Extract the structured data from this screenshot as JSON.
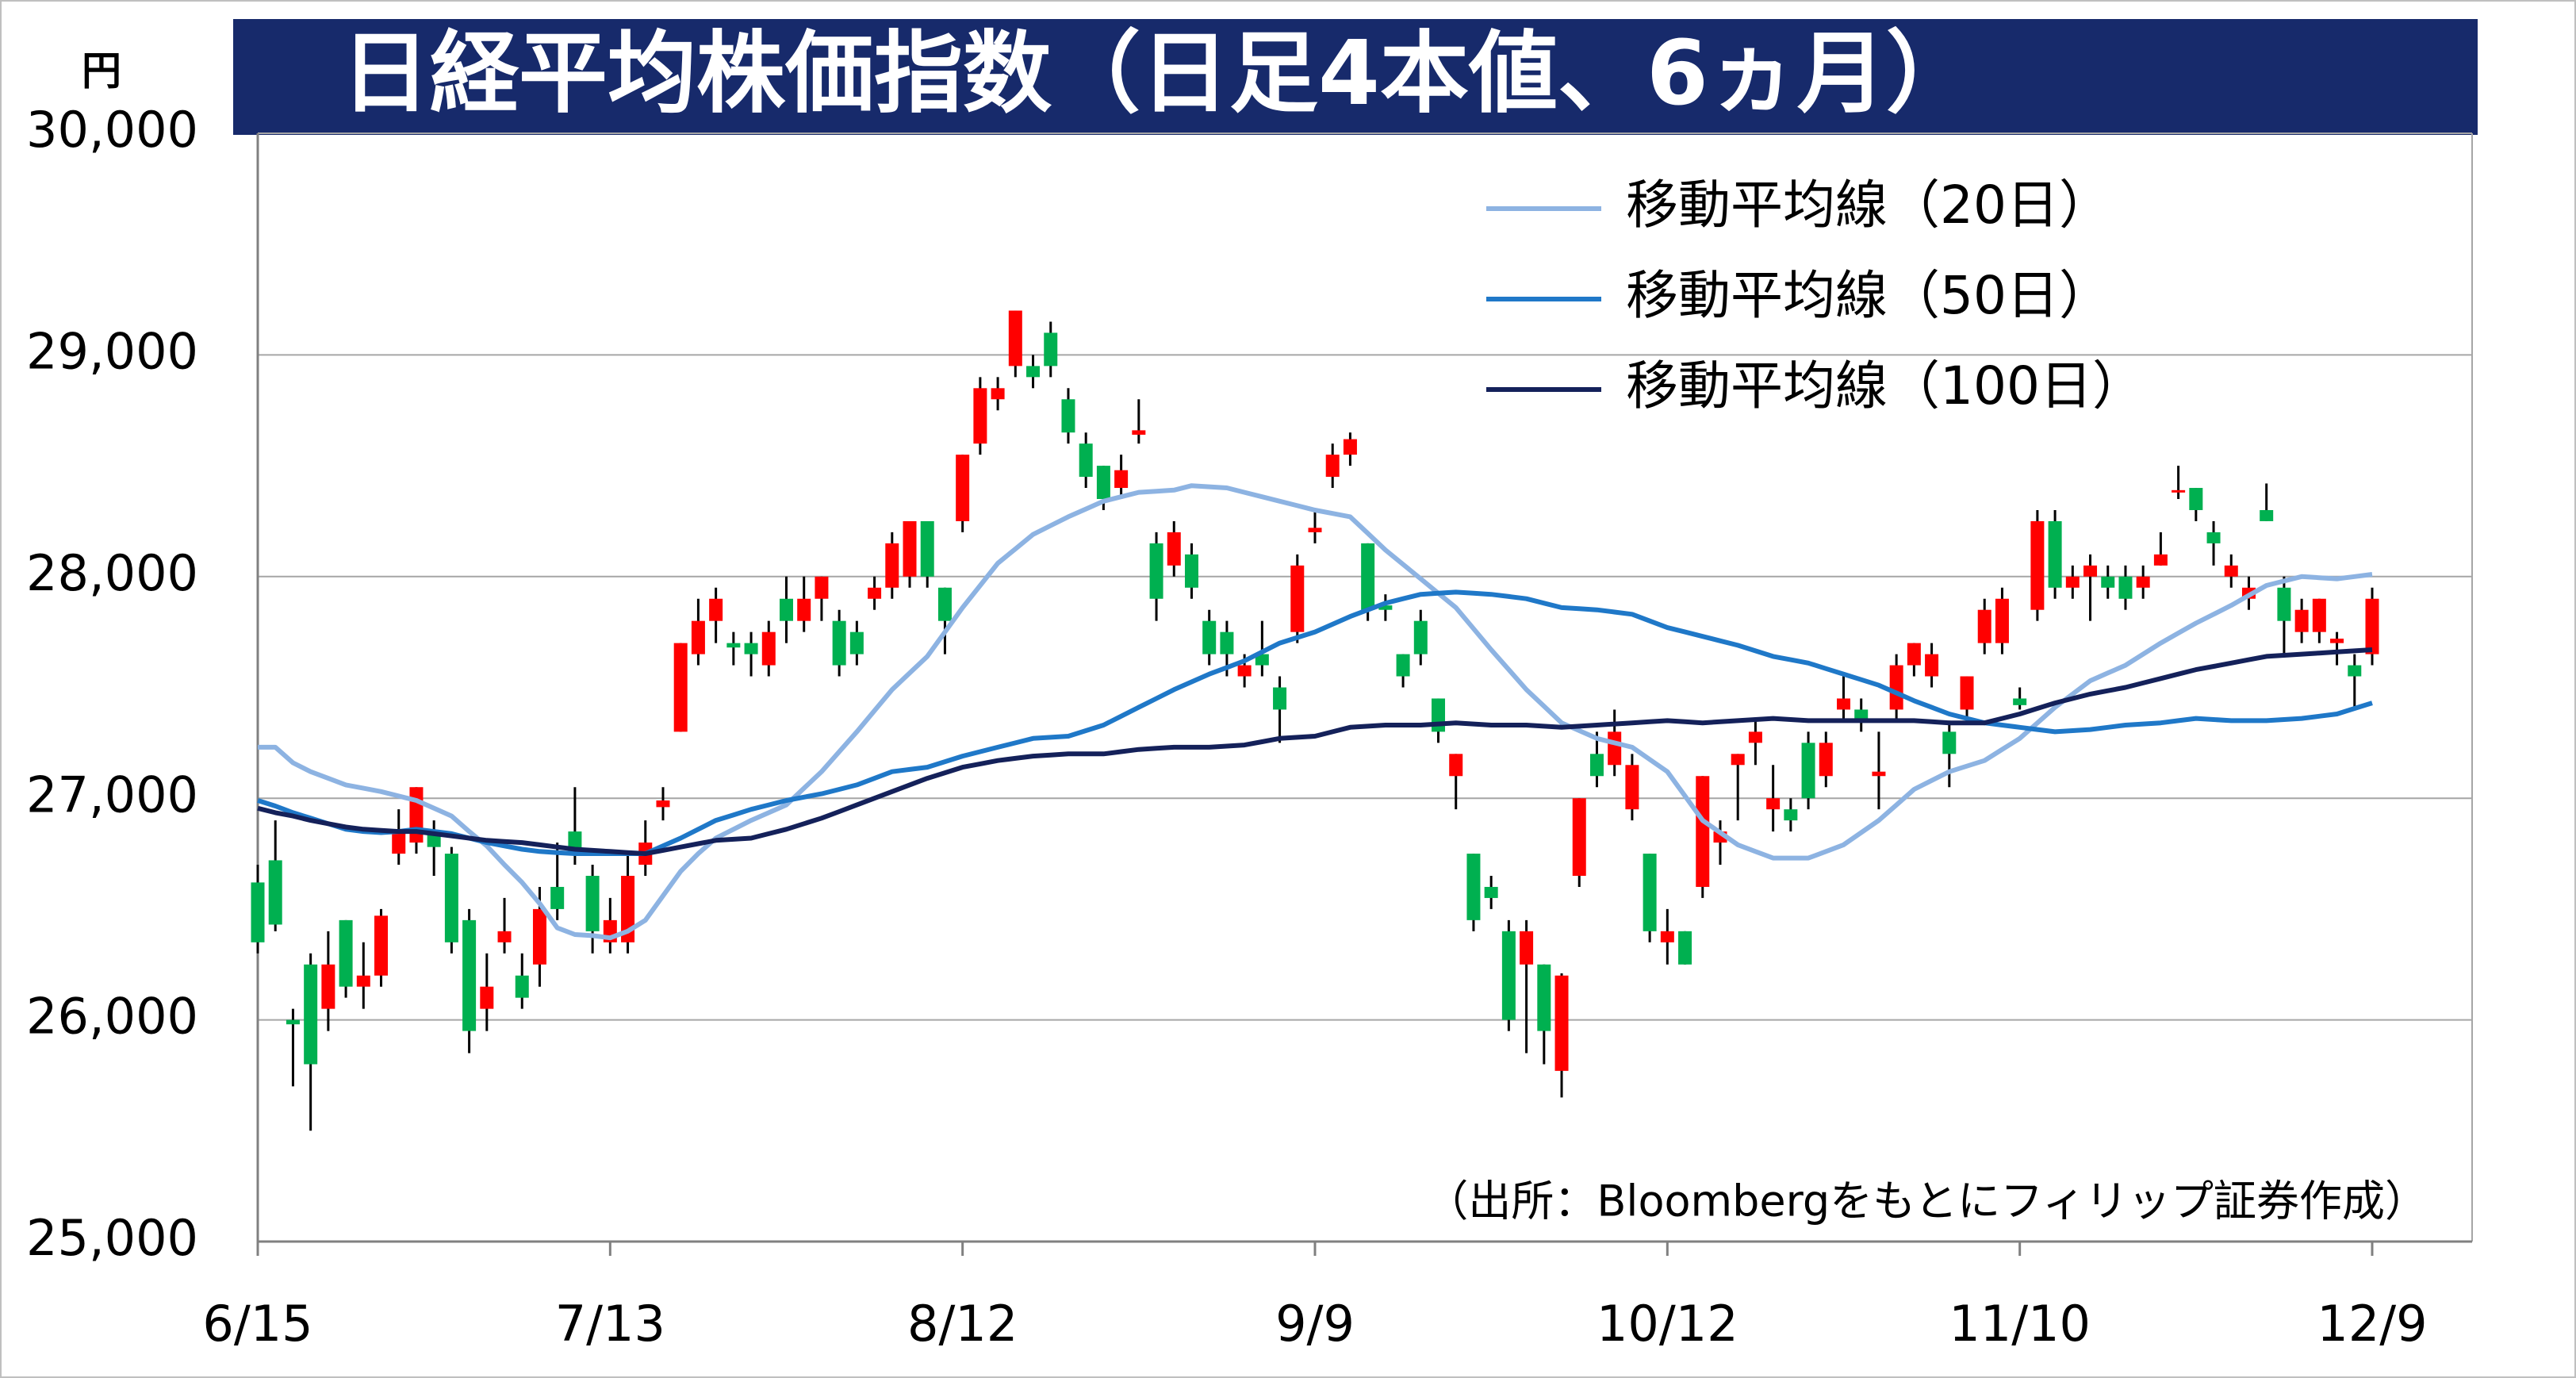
{
  "chart_data": {
    "type": "candlestick",
    "title": "日経平均株価指数（日足4本値、6ヵ月）",
    "y_unit": "円",
    "source": "（出所：Bloombergをもとにフィリップ証券作成）",
    "up_color": "#ff0000",
    "down_color": "#00b050",
    "grid": true,
    "ylim": [
      25000,
      30000
    ],
    "yticks": [
      {
        "value": 25000,
        "label": "25,000"
      },
      {
        "value": 26000,
        "label": "26,000"
      },
      {
        "value": 27000,
        "label": "27,000"
      },
      {
        "value": 28000,
        "label": "28,000"
      },
      {
        "value": 29000,
        "label": "29,000"
      },
      {
        "value": 30000,
        "label": "30,000"
      }
    ],
    "categories": [
      "6/15",
      null,
      null,
      null,
      null,
      null,
      null,
      null,
      null,
      null,
      null,
      null,
      null,
      null,
      null,
      null,
      null,
      null,
      null,
      null,
      "7/13",
      null,
      null,
      null,
      null,
      null,
      null,
      null,
      null,
      null,
      null,
      null,
      null,
      null,
      null,
      null,
      null,
      null,
      null,
      null,
      "8/12",
      null,
      null,
      null,
      null,
      null,
      null,
      null,
      null,
      null,
      null,
      null,
      null,
      null,
      null,
      null,
      null,
      null,
      null,
      null,
      "9/9",
      null,
      null,
      null,
      null,
      null,
      null,
      null,
      null,
      null,
      null,
      null,
      null,
      null,
      null,
      null,
      null,
      null,
      null,
      null,
      "10/12",
      null,
      null,
      null,
      null,
      null,
      null,
      null,
      null,
      null,
      null,
      null,
      null,
      null,
      null,
      null,
      null,
      null,
      null,
      null,
      "11/10",
      null,
      null,
      null,
      null,
      null,
      null,
      null,
      null,
      null,
      null,
      null,
      null,
      null,
      null,
      null,
      null,
      null,
      null,
      null,
      "12/9"
    ],
    "open": [
      26620,
      26720,
      26000,
      26250,
      26050,
      26450,
      26150,
      26200,
      26750,
      26800,
      26850,
      26750,
      26450,
      26050,
      26350,
      26200,
      26250,
      26600,
      26850,
      26650,
      26350,
      26350,
      26700,
      26960,
      27300,
      27650,
      27800,
      27700,
      27700,
      27600,
      27900,
      27800,
      27900,
      27800,
      27750,
      27900,
      27950,
      28000,
      28250,
      27950,
      28250,
      28600,
      28800,
      28950,
      28950,
      29100,
      28800,
      28600,
      28500,
      28400,
      28640,
      28150,
      28050,
      28100,
      27800,
      27750,
      27550,
      27650,
      27500,
      27750,
      28200,
      28450,
      28550,
      28150,
      27870,
      27650,
      27800,
      27450,
      27100,
      26750,
      26600,
      26400,
      26250,
      26250,
      25770,
      26650,
      27200,
      27150,
      26950,
      26750,
      26350,
      26400,
      26600,
      26800,
      27150,
      27250,
      26950,
      26950,
      27250,
      27100,
      27400,
      27400,
      27100,
      27400,
      27600,
      27550,
      27300,
      27400,
      27700,
      27700,
      27450,
      27850,
      28250,
      27950,
      28000,
      28000,
      28000,
      27950,
      28050,
      28380,
      28400,
      28200,
      28000,
      27900,
      28300,
      27950,
      27750,
      27750,
      27700,
      27600,
      27650
    ],
    "high": [
      26700,
      26900,
      26050,
      26300,
      26400,
      26450,
      26350,
      26500,
      26950,
      27050,
      26900,
      26780,
      26500,
      26300,
      26550,
      26300,
      26600,
      26800,
      27050,
      26700,
      26550,
      26750,
      26900,
      27050,
      27700,
      27900,
      27950,
      27750,
      27750,
      27800,
      28000,
      28000,
      28000,
      27850,
      27800,
      28000,
      28200,
      28250,
      28250,
      27950,
      28550,
      28900,
      28900,
      29200,
      29000,
      29150,
      28850,
      28650,
      28500,
      28550,
      28800,
      28200,
      28250,
      28150,
      27850,
      27800,
      27650,
      27800,
      27550,
      28100,
      28300,
      28600,
      28650,
      28150,
      27920,
      27650,
      27850,
      27450,
      27200,
      26750,
      26650,
      26450,
      26450,
      26250,
      26210,
      27000,
      27300,
      27400,
      27200,
      26750,
      26500,
      26400,
      27100,
      26900,
      27200,
      27350,
      27150,
      27000,
      27300,
      27300,
      27550,
      27450,
      27300,
      27650,
      27700,
      27700,
      27350,
      27550,
      27900,
      27950,
      27500,
      28300,
      28300,
      28050,
      28100,
      28050,
      28050,
      28050,
      28200,
      28500,
      28400,
      28250,
      28100,
      28000,
      28420,
      28000,
      27900,
      27900,
      27750,
      27650,
      27950
    ],
    "low": [
      26300,
      26400,
      25700,
      25500,
      25950,
      26100,
      26050,
      26150,
      26700,
      26750,
      26650,
      26300,
      25850,
      25950,
      26300,
      26050,
      26150,
      26450,
      26700,
      26300,
      26300,
      26300,
      26650,
      26900,
      27300,
      27600,
      27700,
      27600,
      27550,
      27550,
      27700,
      27750,
      27800,
      27550,
      27600,
      27850,
      27900,
      27950,
      27950,
      27650,
      28200,
      28550,
      28750,
      28900,
      28850,
      28900,
      28600,
      28400,
      28300,
      28350,
      28600,
      27800,
      28000,
      27900,
      27600,
      27550,
      27500,
      27550,
      27250,
      27700,
      28150,
      28400,
      28500,
      27800,
      27800,
      27500,
      27600,
      27250,
      26950,
      26400,
      26500,
      25950,
      25850,
      25800,
      25650,
      26600,
      27050,
      27100,
      26900,
      26350,
      26250,
      26250,
      26550,
      26700,
      26900,
      27150,
      26850,
      26850,
      26950,
      27050,
      27350,
      27300,
      26950,
      27350,
      27550,
      27500,
      27050,
      27350,
      27650,
      27650,
      27400,
      27800,
      27900,
      27900,
      27800,
      27900,
      27850,
      27900,
      28050,
      28350,
      28250,
      28050,
      27950,
      27850,
      28250,
      27650,
      27700,
      27700,
      27600,
      27400,
      27600
    ],
    "close": [
      26350,
      26430,
      25980,
      25800,
      26250,
      26150,
      26200,
      26470,
      26850,
      27050,
      26780,
      26350,
      25950,
      26150,
      26400,
      26100,
      26500,
      26500,
      26750,
      26400,
      26450,
      26650,
      26800,
      26990,
      27700,
      27800,
      27900,
      27680,
      27650,
      27750,
      27800,
      27900,
      28000,
      27600,
      27650,
      27950,
      28150,
      28250,
      28000,
      27800,
      28550,
      28850,
      28850,
      29200,
      28900,
      28950,
      28650,
      28450,
      28350,
      28480,
      28660,
      27900,
      28200,
      27950,
      27650,
      27650,
      27600,
      27600,
      27400,
      28050,
      28220,
      28550,
      28620,
      27850,
      27850,
      27550,
      27650,
      27300,
      27200,
      26450,
      26550,
      26000,
      26400,
      25950,
      26200,
      27000,
      27100,
      27300,
      27150,
      26400,
      26400,
      26250,
      27100,
      26850,
      27200,
      27300,
      27000,
      26900,
      27000,
      27250,
      27450,
      27350,
      27120,
      27600,
      27700,
      27650,
      27200,
      27550,
      27850,
      27900,
      27420,
      28250,
      27950,
      28000,
      28050,
      27950,
      27900,
      28000,
      28100,
      28390,
      28300,
      28150,
      28050,
      27950,
      28250,
      27800,
      27850,
      27900,
      27720,
      27550,
      27900
    ],
    "series": [
      {
        "name": "移動平均線（20日）",
        "color": "#8db3e2",
        "values": [
          27230,
          27230,
          27160,
          27120,
          27090,
          27060,
          27045,
          27030,
          27010,
          26990,
          26955,
          26920,
          26850,
          26785,
          26700,
          26620,
          26525,
          26415,
          26385,
          26380,
          26370,
          26400,
          26450,
          26560,
          26670,
          26750,
          26820,
          26860,
          26900,
          26935,
          26970,
          27045,
          27120,
          27210,
          27300,
          27395,
          27490,
          27565,
          27640,
          27750,
          27860,
          27960,
          28060,
          28125,
          28190,
          28230,
          28270,
          28305,
          28340,
          28360,
          28380,
          28385,
          28390,
          28410,
          28405,
          28400,
          28380,
          28360,
          28340,
          28320,
          28300,
          28285,
          28270,
          28195,
          28120,
          28055,
          27990,
          27925,
          27860,
          27765,
          27670,
          27580,
          27490,
          27415,
          27340,
          27305,
          27270,
          27250,
          27230,
          27175,
          27120,
          27010,
          26900,
          26845,
          26790,
          26760,
          26730,
          26730,
          26730,
          26760,
          26790,
          26845,
          26900,
          26970,
          27040,
          27080,
          27120,
          27145,
          27170,
          27220,
          27270,
          27340,
          27410,
          27470,
          27530,
          27565,
          27600,
          27650,
          27700,
          27745,
          27790,
          27830,
          27870,
          27915,
          27960,
          27980,
          28000,
          27995,
          27990,
          28000,
          28010
        ]
      },
      {
        "name": "移動平均線（50日）",
        "color": "#1f78c8",
        "values": [
          26990,
          26965,
          26935,
          26910,
          26885,
          26860,
          26850,
          26845,
          26850,
          26860,
          26850,
          26840,
          26820,
          26800,
          26785,
          26770,
          26760,
          26755,
          26750,
          26750,
          26750,
          26750,
          26750,
          26785,
          26820,
          26860,
          26900,
          26925,
          26950,
          26970,
          26990,
          27005,
          27020,
          27040,
          27060,
          27090,
          27120,
          27130,
          27140,
          27165,
          27190,
          27210,
          27230,
          27250,
          27270,
          27275,
          27280,
          27305,
          27330,
          27370,
          27410,
          27450,
          27490,
          27525,
          27560,
          27590,
          27620,
          27660,
          27700,
          27725,
          27750,
          27785,
          27820,
          27850,
          27880,
          27900,
          27920,
          27925,
          27930,
          27925,
          27920,
          27910,
          27900,
          27880,
          27860,
          27855,
          27850,
          27840,
          27830,
          27800,
          27770,
          27750,
          27730,
          27710,
          27690,
          27665,
          27640,
          27625,
          27610,
          27585,
          27560,
          27535,
          27510,
          27475,
          27440,
          27410,
          27380,
          27360,
          27340,
          27330,
          27320,
          27310,
          27300,
          27305,
          27310,
          27320,
          27330,
          27335,
          27340,
          27350,
          27360,
          27355,
          27350,
          27350,
          27350,
          27355,
          27360,
          27370,
          27380,
          27405,
          27430
        ]
      },
      {
        "name": "移動平均線（100日）",
        "color": "#14215a",
        "values": [
          26955,
          26935,
          26920,
          26900,
          26885,
          26870,
          26860,
          26855,
          26850,
          26850,
          26840,
          26830,
          26820,
          26810,
          26805,
          26800,
          26790,
          26780,
          26770,
          26765,
          26760,
          26755,
          26750,
          26765,
          26780,
          26795,
          26810,
          26815,
          26820,
          26840,
          26860,
          26885,
          26910,
          26940,
          26970,
          27000,
          27030,
          27060,
          27090,
          27115,
          27140,
          27155,
          27170,
          27180,
          27190,
          27195,
          27200,
          27200,
          27200,
          27210,
          27220,
          27225,
          27230,
          27230,
          27230,
          27235,
          27240,
          27255,
          27270,
          27275,
          27280,
          27300,
          27320,
          27325,
          27330,
          27330,
          27330,
          27335,
          27340,
          27335,
          27330,
          27330,
          27330,
          27325,
          27320,
          27325,
          27330,
          27335,
          27340,
          27345,
          27350,
          27345,
          27340,
          27345,
          27350,
          27355,
          27360,
          27355,
          27350,
          27350,
          27350,
          27350,
          27350,
          27350,
          27350,
          27345,
          27340,
          27340,
          27340,
          27360,
          27380,
          27405,
          27430,
          27450,
          27470,
          27485,
          27500,
          27520,
          27540,
          27560,
          27580,
          27595,
          27610,
          27625,
          27640,
          27645,
          27650,
          27655,
          27660,
          27665,
          27670
        ]
      }
    ]
  }
}
